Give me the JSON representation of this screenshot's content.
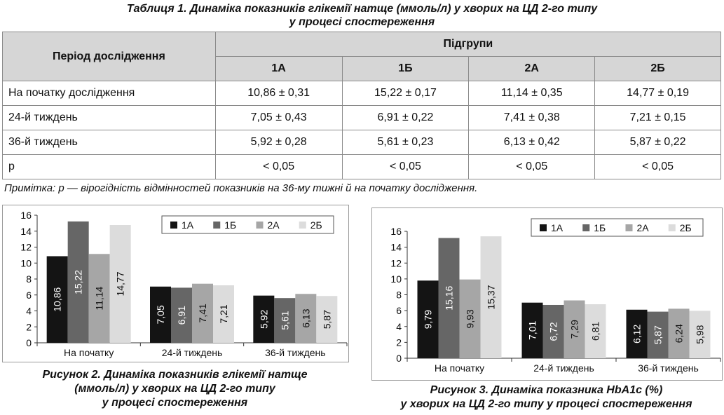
{
  "table": {
    "caption_line1": "Таблиця 1. Динаміка показників глікемії натще (ммоль/л) у хворих на ЦД 2-го типу",
    "caption_line2": "у процесі спостереження",
    "header_period": "Період дослідження",
    "header_subgroups": "Підгрупи",
    "groups": [
      "1А",
      "1Б",
      "2А",
      "2Б"
    ],
    "rows": [
      {
        "label": "На початку дослідження",
        "values": [
          "10,86 ± 0,31",
          "15,22 ± 0,17",
          "11,14 ± 0,35",
          "14,77 ± 0,19"
        ]
      },
      {
        "label": "24-й тиждень",
        "values": [
          "7,05 ± 0,43",
          "6,91 ± 0,22",
          "7,41 ± 0,38",
          "7,21 ± 0,15"
        ]
      },
      {
        "label": "36-й тиждень",
        "values": [
          "5,92 ± 0,28",
          "5,61 ± 0,23",
          "6,13 ± 0,42",
          "5,87 ± 0,22"
        ]
      },
      {
        "label": "р",
        "values": [
          "< 0,05",
          "< 0,05",
          "< 0,05",
          "< 0,05"
        ]
      }
    ],
    "note": "Примітка:  р — вірогідність відмінностей показників на 36-му тижні й на початку дослідження."
  },
  "colors": [
    "#141414",
    "#666666",
    "#a6a6a6",
    "#dcdcdc"
  ],
  "chart_data": [
    {
      "type": "bar",
      "caption_lines": [
        "Рисунок 2. Динаміка показників глікемії натще",
        "(ммоль/л) у хворих на ЦД 2-го типу",
        "у процесі спостереження"
      ],
      "categories": [
        "На початку",
        "24-й тиждень",
        "36-й тиждень"
      ],
      "series": [
        {
          "name": "1А",
          "values": [
            10.86,
            7.05,
            5.92
          ],
          "labels": [
            "10,86",
            "7,05",
            "5,92"
          ]
        },
        {
          "name": "1Б",
          "values": [
            15.22,
            6.91,
            5.61
          ],
          "labels": [
            "15,22",
            "6,91",
            "5,61"
          ]
        },
        {
          "name": "2А",
          "values": [
            11.14,
            7.41,
            6.13
          ],
          "labels": [
            "11,14",
            "7,41",
            "6,13"
          ]
        },
        {
          "name": "2Б",
          "values": [
            14.77,
            7.21,
            5.87
          ],
          "labels": [
            "14,77",
            "7,21",
            "5,87"
          ]
        }
      ],
      "ylim": [
        0,
        16
      ],
      "yticks": [
        0,
        2,
        4,
        6,
        8,
        10,
        12,
        14,
        16
      ],
      "grid": false,
      "legend": "top-right"
    },
    {
      "type": "bar",
      "caption_lines": [
        "Рисунок 3. Динаміка показника HbA1c (%)",
        "у хворих на ЦД 2-го типу у процесі спостереження"
      ],
      "categories": [
        "На початку",
        "24-й тиждень",
        "36-й тиждень"
      ],
      "series": [
        {
          "name": "1А",
          "values": [
            9.79,
            7.01,
            6.12
          ],
          "labels": [
            "9,79",
            "7,01",
            "6,12"
          ]
        },
        {
          "name": "1Б",
          "values": [
            15.16,
            6.72,
            5.87
          ],
          "labels": [
            "15,16",
            "6,72",
            "5,87"
          ]
        },
        {
          "name": "2А",
          "values": [
            9.93,
            7.29,
            6.24
          ],
          "labels": [
            "9,93",
            "7,29",
            "6,24"
          ]
        },
        {
          "name": "2Б",
          "values": [
            15.37,
            6.81,
            5.98
          ],
          "labels": [
            "15,37",
            "6,81",
            "5,98"
          ]
        }
      ],
      "ylim": [
        0,
        16
      ],
      "yticks": [
        0,
        2,
        4,
        6,
        8,
        10,
        12,
        14,
        16
      ],
      "grid": false,
      "legend": "top-right"
    }
  ]
}
